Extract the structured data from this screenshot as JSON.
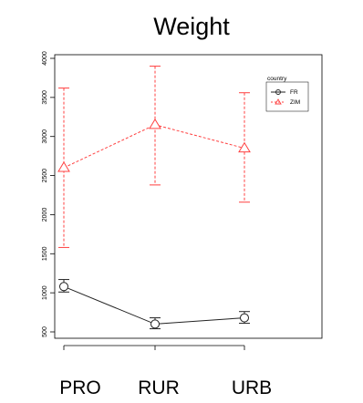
{
  "chart_data": {
    "type": "line",
    "title": "Weight",
    "xlabel": "",
    "ylabel": "",
    "categories": [
      "PRO",
      "RUR",
      "URB"
    ],
    "ylim": [
      500,
      4000
    ],
    "yticks": [
      500,
      1000,
      1500,
      2000,
      2500,
      3000,
      3500,
      4000
    ],
    "legend": {
      "title": "country",
      "position": "top-right"
    },
    "series": [
      {
        "name": "FR",
        "color": "#222222",
        "marker": "circle",
        "line_style": "solid",
        "values": [
          1080,
          600,
          680
        ],
        "error_low": [
          1010,
          540,
          610
        ],
        "error_high": [
          1170,
          680,
          760
        ]
      },
      {
        "name": "ZIM",
        "color": "#ff4040",
        "marker": "triangle",
        "line_style": "dashed",
        "values": [
          2600,
          3150,
          2850
        ],
        "error_low": [
          1580,
          2380,
          2160
        ],
        "error_high": [
          3620,
          3900,
          3560
        ]
      }
    ]
  }
}
